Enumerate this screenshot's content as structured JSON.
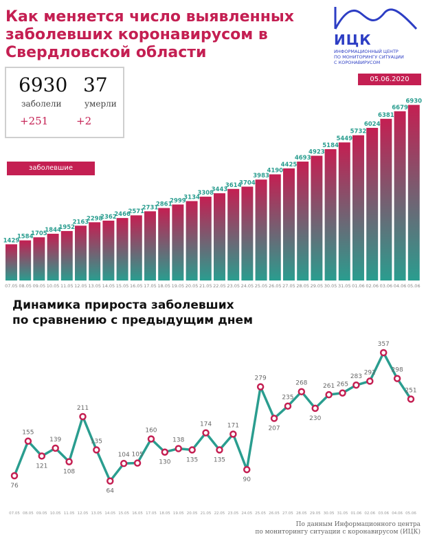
{
  "title_lines": [
    "Как меняется число выявленных",
    "заболевших коронавирусом в",
    "Свердловской области"
  ],
  "logo": {
    "name": "ИЦК",
    "subtitle_lines": [
      "Информационный центр",
      "по мониторингу ситуации",
      "с коронавирусом"
    ],
    "color": "#2d3ec4"
  },
  "date": "05.06.2020",
  "stats": {
    "sick_value": "6930",
    "sick_label": "заболели",
    "sick_delta": "+251",
    "dead_value": "37",
    "dead_label": "умерли",
    "dead_delta": "+2"
  },
  "subtitle_lines": [
    "Динамика прироста заболевших",
    "по сравнению с предыдущим днем"
  ],
  "source_lines": [
    "По данным Информационного центра",
    "по мониторингу ситуации с коронавирусом (ИЦК)"
  ],
  "colors": {
    "accent": "#c41f52",
    "bar_bottom": "#2a9d8f",
    "line": "#2a9d8f",
    "marker": "#c41f52"
  },
  "chart_data": [
    {
      "type": "bar",
      "legend": "заболевшие",
      "categories": [
        "07.05",
        "08.05",
        "09.05",
        "10.05",
        "11.05",
        "12.05",
        "13.05",
        "14.05",
        "15.05",
        "16.05",
        "17.05",
        "18.05",
        "19.05",
        "20.05",
        "21.05",
        "22.05",
        "23.05",
        "24.05",
        "25.05",
        "26.05",
        "27.05",
        "28.05",
        "29.05",
        "30.05",
        "31.05",
        "01.06",
        "02.06",
        "03.06",
        "04.06",
        "05.06"
      ],
      "values": [
        1429,
        1584,
        1705,
        1844,
        1952,
        2163,
        2298,
        2362,
        2466,
        2571,
        2731,
        2861,
        2999,
        3134,
        3308,
        3443,
        3614,
        3704,
        3983,
        4190,
        4425,
        4693,
        4923,
        5184,
        5449,
        5732,
        6024,
        6381,
        6679,
        6930
      ],
      "ylim": [
        0,
        7000
      ]
    },
    {
      "type": "line",
      "categories": [
        "07.05",
        "08.05",
        "09.05",
        "10.05",
        "11.05",
        "12.05",
        "13.05",
        "14.05",
        "15.05",
        "16.05",
        "17.05",
        "18.05",
        "19.05",
        "20.05",
        "21.05",
        "22.05",
        "23.05",
        "24.05",
        "25.05",
        "26.05",
        "27.05",
        "28.05",
        "29.05",
        "30.05",
        "31.05",
        "01.06",
        "02.06",
        "03.06",
        "04.06",
        "05.06"
      ],
      "values": [
        76,
        155,
        121,
        139,
        108,
        211,
        135,
        64,
        104,
        105,
        160,
        130,
        138,
        135,
        174,
        135,
        171,
        90,
        279,
        207,
        235,
        268,
        230,
        261,
        265,
        283,
        292,
        357,
        298,
        251
      ],
      "ylim": [
        60,
        360
      ]
    }
  ]
}
